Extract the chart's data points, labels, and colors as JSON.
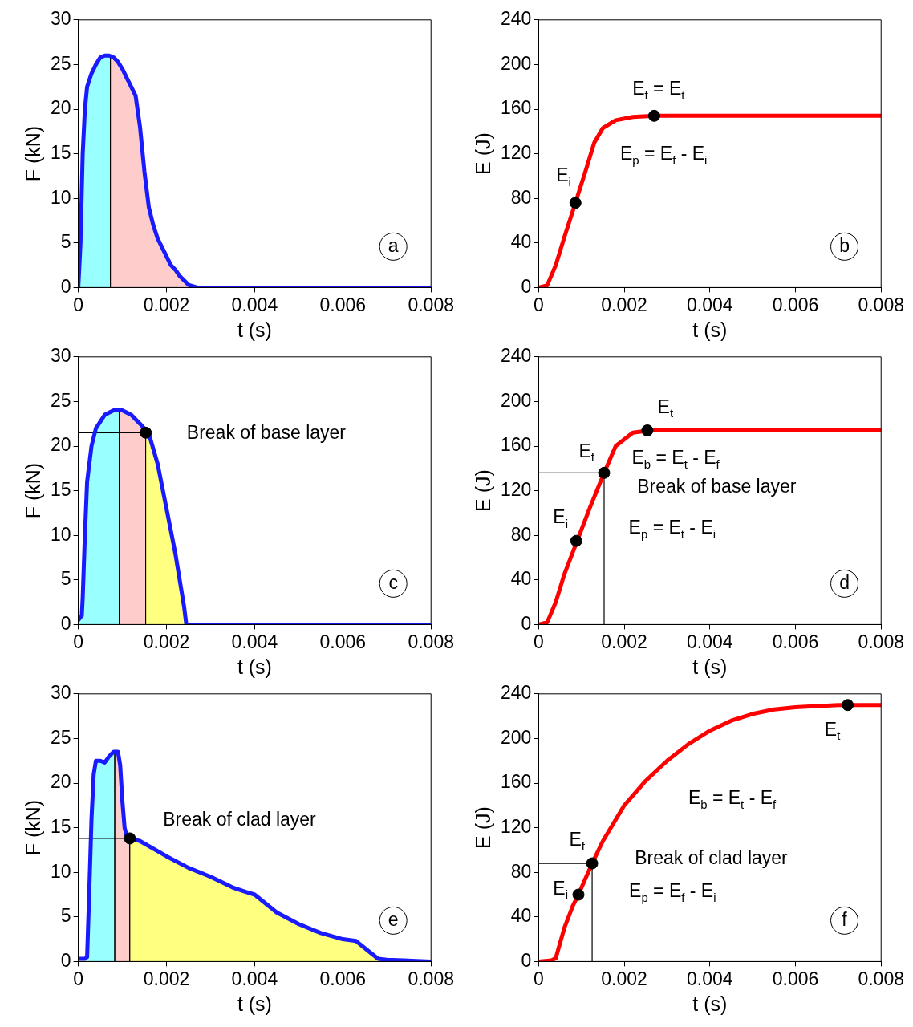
{
  "chart_data": [
    {
      "type": "line",
      "xlabel": "t (s)",
      "ylabel": "F (kN)",
      "xlim": [
        0,
        0.008
      ],
      "xticks": [
        0,
        0.002,
        0.004,
        0.006,
        0.008
      ],
      "ylim": [
        0,
        30
      ],
      "yticks": [
        0,
        5,
        10,
        15,
        20,
        25,
        30
      ],
      "grid": false,
      "legend": false,
      "annotations": [
        "a"
      ],
      "series": [
        {
          "type": "area",
          "color": "#99ffff",
          "x": [
            0,
            5e-05,
            0.0001,
            0.00015,
            0.0002,
            0.0003,
            0.0004,
            0.0005,
            0.0006,
            0.0007,
            0.00073,
            0.00073
          ],
          "values": [
            0,
            5,
            15,
            20,
            22.5,
            24,
            25,
            25.8,
            26,
            26,
            26,
            0
          ]
        },
        {
          "type": "area",
          "color": "#ffcccc",
          "x": [
            0.00073,
            0.00073,
            0.0008,
            0.0009,
            0.001,
            0.0011,
            0.0012,
            0.0013,
            0.0014,
            0.0015,
            0.0016,
            0.0017,
            0.0018,
            0.0019,
            0.002,
            0.0021,
            0.0022,
            0.0023,
            0.0024,
            0.0025,
            0.0027
          ],
          "values": [
            0,
            26,
            25.8,
            25.3,
            24.5,
            23.5,
            22.5,
            21.5,
            18,
            13,
            9,
            7,
            5.5,
            4.5,
            3.5,
            2.5,
            2,
            1.3,
            0.8,
            0.3,
            0
          ]
        },
        {
          "color": "#1a1aff",
          "x": [
            0,
            5e-05,
            0.0001,
            0.00015,
            0.0002,
            0.0003,
            0.0004,
            0.0005,
            0.0006,
            0.0007,
            0.0008,
            0.0009,
            0.001,
            0.0011,
            0.0012,
            0.0013,
            0.0014,
            0.0015,
            0.0016,
            0.0017,
            0.0018,
            0.0019,
            0.002,
            0.0021,
            0.0022,
            0.0023,
            0.0024,
            0.0025,
            0.0027,
            0.008
          ],
          "values": [
            0,
            5,
            15,
            20,
            22.5,
            24,
            25,
            25.8,
            26,
            26,
            25.8,
            25.3,
            24.5,
            23.5,
            22.5,
            21.5,
            18,
            13,
            9,
            7,
            5.5,
            4.5,
            3.5,
            2.5,
            2,
            1.3,
            0.8,
            0.3,
            0,
            0
          ]
        }
      ]
    },
    {
      "type": "line",
      "xlabel": "t (s)",
      "ylabel": "E (J)",
      "xlim": [
        0,
        0.008
      ],
      "xticks": [
        0,
        0.002,
        0.004,
        0.006,
        0.008
      ],
      "ylim": [
        0,
        240
      ],
      "yticks": [
        0,
        40,
        80,
        120,
        160,
        200,
        240
      ],
      "grid": false,
      "legend": false,
      "annotations": [
        "b",
        "E$_{i}$",
        "E$_{f}$ = E$_{t}$",
        "E$_{p}$ = E$_{f}$ - E$_{i}$"
      ],
      "series": [
        {
          "color": "#ff0000",
          "x": [
            0,
            0.0002,
            0.0004,
            0.0006,
            0.00086,
            0.0011,
            0.0013,
            0.0015,
            0.0018,
            0.0022,
            0.0027,
            0.008
          ],
          "values": [
            0,
            2,
            20,
            45,
            76,
            105,
            130,
            143,
            150,
            153,
            154,
            154
          ]
        },
        {
          "type": "scatter",
          "marker": "circle",
          "color": "#000000",
          "x": [
            0.00086,
            0.0027
          ],
          "values": [
            76,
            154
          ]
        }
      ]
    },
    {
      "type": "line",
      "xlabel": "t (s)",
      "ylabel": "F (kN)",
      "xlim": [
        0,
        0.008
      ],
      "xticks": [
        0,
        0.002,
        0.004,
        0.006,
        0.008
      ],
      "ylim": [
        0,
        30
      ],
      "yticks": [
        0,
        5,
        10,
        15,
        20,
        25,
        30
      ],
      "grid": false,
      "legend": false,
      "annotations": [
        "c",
        "Break of base layer"
      ],
      "series": [
        {
          "type": "area",
          "color": "#99ffff",
          "x": [
            0,
            8e-05,
            0.0001,
            0.00015,
            0.0002,
            0.0003,
            0.0004,
            0.0006,
            0.0008,
            0.00093,
            0.00093
          ],
          "values": [
            0.5,
            1,
            3,
            10,
            16,
            20,
            22,
            23.5,
            24,
            24,
            0
          ]
        },
        {
          "type": "area",
          "color": "#ffcccc",
          "x": [
            0.00093,
            0.00093,
            0.001,
            0.0012,
            0.0014,
            0.00153,
            0.00153
          ],
          "values": [
            0,
            24,
            24,
            23.5,
            22.5,
            21.5,
            0
          ]
        },
        {
          "type": "area",
          "color": "#ffff80",
          "x": [
            0.00153,
            0.00153,
            0.0016,
            0.0018,
            0.002,
            0.0022,
            0.0023,
            0.0024,
            0.00245
          ],
          "values": [
            0,
            21.5,
            21.4,
            18,
            13,
            8,
            5,
            2,
            0
          ]
        },
        {
          "color": "#000000",
          "x": [
            0,
            0.00153
          ],
          "values": [
            21.5,
            21.5
          ]
        },
        {
          "color": "#1a1aff",
          "x": [
            0,
            8e-05,
            0.0001,
            0.00015,
            0.0002,
            0.0003,
            0.0004,
            0.0006,
            0.0008,
            0.001,
            0.0012,
            0.0014,
            0.0016,
            0.0018,
            0.002,
            0.0022,
            0.0023,
            0.0024,
            0.00245,
            0.008
          ],
          "values": [
            0.5,
            1,
            3,
            10,
            16,
            20,
            22,
            23.5,
            24,
            24,
            23.5,
            22.5,
            21.4,
            18,
            13,
            8,
            5,
            2,
            0,
            0
          ]
        },
        {
          "type": "scatter",
          "marker": "circle",
          "color": "#000000",
          "x": [
            0.00153
          ],
          "values": [
            21.5
          ]
        }
      ]
    },
    {
      "type": "line",
      "xlabel": "t (s)",
      "ylabel": "E (J)",
      "xlim": [
        0,
        0.008
      ],
      "xticks": [
        0,
        0.002,
        0.004,
        0.006,
        0.008
      ],
      "ylim": [
        0,
        240
      ],
      "yticks": [
        0,
        40,
        80,
        120,
        160,
        200,
        240
      ],
      "grid": false,
      "legend": false,
      "annotations": [
        "d",
        "E$_{t}$",
        "E$_{f}$",
        "E$_{b}$ = E$_{t}$ - E$_{f}$",
        "Break of base layer",
        "E$_{i}$",
        "E$_{p}$ = E$_{t}$ - E$_{i}$"
      ],
      "series": [
        {
          "color": "#000000",
          "x": [
            0,
            0.00153,
            0.00153
          ],
          "values": [
            136,
            136,
            0
          ]
        },
        {
          "color": "#ff0000",
          "x": [
            0,
            0.0002,
            0.0004,
            0.0006,
            0.0009,
            0.0012,
            0.00153,
            0.0018,
            0.0022,
            0.0026,
            0.008
          ],
          "values": [
            0,
            2,
            20,
            45,
            75,
            105,
            136,
            160,
            172,
            174,
            174
          ]
        },
        {
          "type": "scatter",
          "marker": "circle",
          "color": "#000000",
          "x": [
            0.00088,
            0.00153,
            0.00254
          ],
          "values": [
            75,
            136,
            174
          ]
        }
      ]
    },
    {
      "type": "line",
      "xlabel": "t (s)",
      "ylabel": "F (kN)",
      "xlim": [
        0,
        0.008
      ],
      "xticks": [
        0,
        0.002,
        0.004,
        0.006,
        0.008
      ],
      "ylim": [
        0,
        30
      ],
      "yticks": [
        0,
        5,
        10,
        15,
        20,
        25,
        30
      ],
      "grid": false,
      "legend": false,
      "annotations": [
        "e",
        "Break of clad layer"
      ],
      "series": [
        {
          "type": "area",
          "color": "#99ffff",
          "x": [
            0.0002,
            0.00025,
            0.0003,
            0.00035,
            0.0004,
            0.0005,
            0.0006,
            0.0007,
            0.0008,
            0.00083,
            0.00083
          ],
          "values": [
            0.5,
            8,
            16,
            21,
            22.5,
            22.5,
            22.3,
            23,
            23.5,
            23.5,
            0
          ]
        },
        {
          "type": "area",
          "color": "#ffcccc",
          "x": [
            0.00083,
            0.00083,
            0.0009,
            0.00095,
            0.001,
            0.00105,
            0.0011,
            0.00117,
            0.00117
          ],
          "values": [
            0,
            23.5,
            23.5,
            22,
            18,
            15,
            14,
            13.8,
            0
          ]
        },
        {
          "type": "area",
          "color": "#ffff80",
          "x": [
            0.00117,
            0.00117,
            0.0014,
            0.002,
            0.0025,
            0.003,
            0.0035,
            0.0038,
            0.004,
            0.0045,
            0.005,
            0.0055,
            0.006,
            0.0063,
            0.0065,
            0.0068
          ],
          "values": [
            0,
            13.8,
            13.5,
            11.8,
            10.5,
            9.5,
            8.3,
            7.8,
            7.5,
            5.5,
            4.2,
            3.2,
            2.5,
            2.3,
            1.5,
            0.3
          ]
        },
        {
          "color": "#000000",
          "x": [
            0,
            0.00117
          ],
          "values": [
            13.8,
            13.8
          ]
        },
        {
          "color": "#1a1aff",
          "x": [
            0,
            0.00015,
            0.0002,
            0.00025,
            0.0003,
            0.00035,
            0.0004,
            0.0005,
            0.0006,
            0.0007,
            0.0008,
            0.0009,
            0.00095,
            0.001,
            0.00105,
            0.0011,
            0.00117,
            0.0014,
            0.002,
            0.0025,
            0.003,
            0.0035,
            0.0038,
            0.004,
            0.0045,
            0.005,
            0.0055,
            0.006,
            0.0063,
            0.0065,
            0.0068,
            0.007,
            0.008
          ],
          "values": [
            0.3,
            0.3,
            0.5,
            8,
            16,
            21,
            22.5,
            22.5,
            22.3,
            23,
            23.5,
            23.5,
            22,
            18,
            15,
            14,
            13.8,
            13.5,
            11.8,
            10.5,
            9.5,
            8.3,
            7.8,
            7.5,
            5.5,
            4.2,
            3.2,
            2.5,
            2.3,
            1.5,
            0.3,
            0.2,
            0
          ]
        },
        {
          "type": "scatter",
          "marker": "circle",
          "color": "#000000",
          "x": [
            0.00117
          ],
          "values": [
            13.8
          ]
        }
      ]
    },
    {
      "type": "line",
      "xlabel": "t (s)",
      "ylabel": "E (J)",
      "xlim": [
        0,
        0.008
      ],
      "xticks": [
        0,
        0.002,
        0.004,
        0.006,
        0.008
      ],
      "ylim": [
        0,
        240
      ],
      "yticks": [
        0,
        40,
        80,
        120,
        160,
        200,
        240
      ],
      "grid": false,
      "legend": false,
      "annotations": [
        "f",
        "E$_{t}$",
        "E$_{b}$ = E$_{t}$ - E$_{f}$",
        "E$_{f}$",
        "Break of clad layer",
        "E$_{i}$",
        "E$_{p}$ = E$_{f}$ - E$_{i}$"
      ],
      "series": [
        {
          "color": "#000000",
          "x": [
            0,
            0.00125,
            0.00125
          ],
          "values": [
            88,
            88,
            0
          ]
        },
        {
          "color": "#ff0000",
          "x": [
            0,
            0.0003,
            0.0004,
            0.0006,
            0.0008,
            0.00093,
            0.00125,
            0.0015,
            0.002,
            0.0025,
            0.003,
            0.0035,
            0.004,
            0.0045,
            0.005,
            0.0055,
            0.006,
            0.007,
            0.008
          ],
          "values": [
            0,
            1,
            3,
            30,
            50,
            60,
            88,
            108,
            140,
            162,
            180,
            195,
            207,
            216,
            222,
            226,
            228,
            230,
            230
          ]
        },
        {
          "type": "scatter",
          "marker": "circle",
          "color": "#000000",
          "x": [
            0.00093,
            0.00125,
            0.00722
          ],
          "values": [
            60,
            88,
            230
          ]
        }
      ]
    }
  ]
}
